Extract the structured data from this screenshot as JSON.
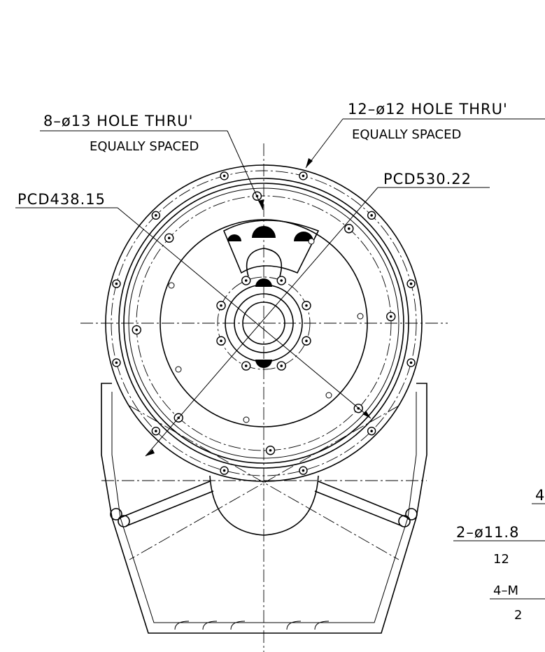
{
  "callouts": {
    "holes_8": {
      "label": "8–ø13 HOLE THRU'",
      "note": "EQUALLY SPACED"
    },
    "holes_12": {
      "label": "12–ø12 HOLE THRU'",
      "note": "EQUALLY SPACED"
    },
    "pcd_inner": "PCD438.15",
    "pcd_outer": "PCD530.22"
  },
  "cut_off_labels": [
    "4",
    "2–ø11.8",
    "12",
    "4–M",
    "2"
  ]
}
